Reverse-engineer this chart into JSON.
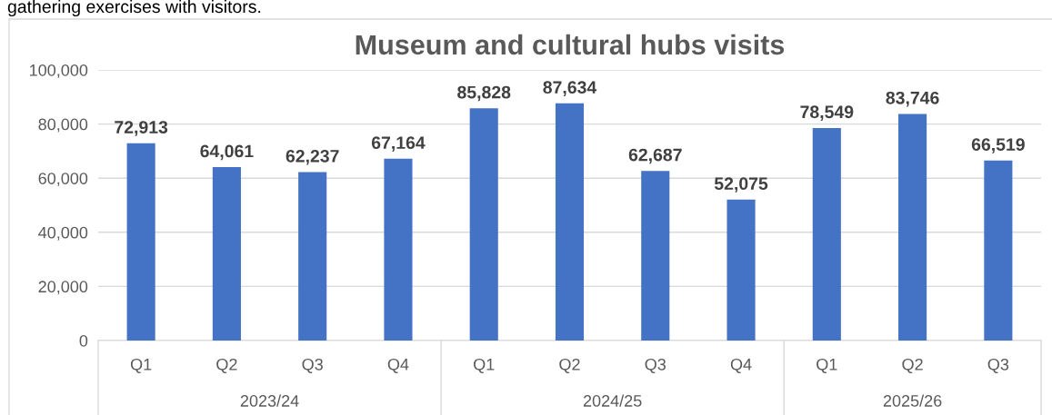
{
  "chart_data": {
    "type": "bar",
    "title": "Museum and cultural hubs visits",
    "categories": [
      "Q1",
      "Q2",
      "Q3",
      "Q4",
      "Q1",
      "Q2",
      "Q3",
      "Q4",
      "Q1",
      "Q2",
      "Q3"
    ],
    "values": [
      72913,
      64061,
      62237,
      67164,
      85828,
      87634,
      62687,
      52075,
      78549,
      83746,
      66519
    ],
    "color": "#4472c4",
    "ylim": [
      0,
      100000
    ],
    "yticks": [
      {
        "value": 0,
        "label": "0"
      },
      {
        "value": 20000,
        "label": "20,000"
      },
      {
        "value": 40000,
        "label": "40,000"
      },
      {
        "value": 60000,
        "label": "60,000"
      },
      {
        "value": 80000,
        "label": "80,000"
      },
      {
        "value": 100000,
        "label": "100,000"
      }
    ],
    "grid": "y",
    "value_labels": [
      "72,913",
      "64,061",
      "62,237",
      "67,164",
      "85,828",
      "87,634",
      "62,687",
      "52,075",
      "78,549",
      "83,746",
      "66,519"
    ],
    "annotations": [
      "gathering exercises with visitors.",
      "2023/24",
      "2024/25",
      "2025/26"
    ]
  }
}
